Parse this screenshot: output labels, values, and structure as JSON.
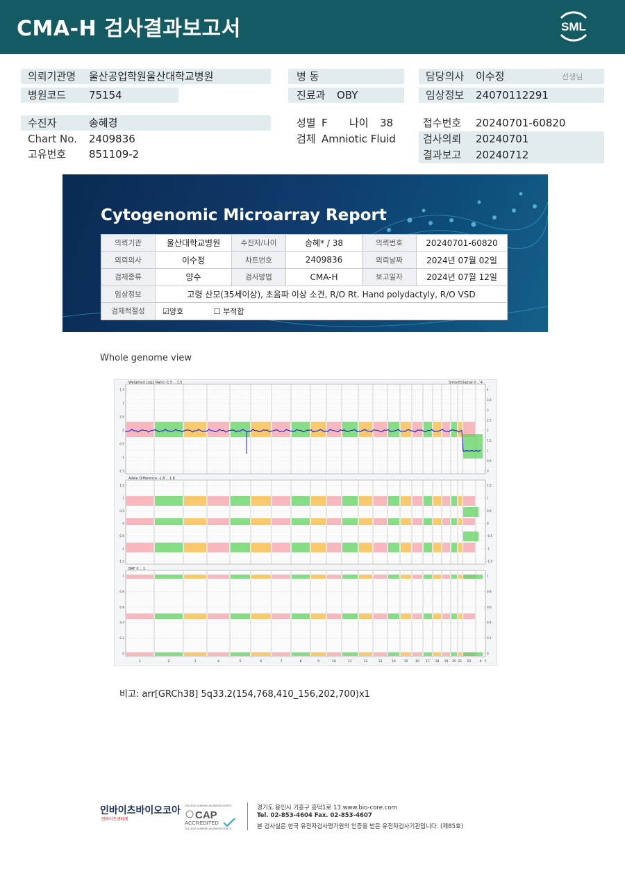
{
  "header": {
    "title": "CMA-H 검사결과보고서",
    "logo_text": "SML"
  },
  "patient": {
    "institution_label": "의뢰기관명",
    "institution": "울산공업학원울산대학교병원",
    "hospital_code_label": "병원코드",
    "hospital_code": "75154",
    "ward_label": "병   동",
    "ward": "",
    "dept_label": "진료과",
    "dept": "OBY",
    "doctor_label": "담당의사",
    "doctor": "이수정",
    "doctor_suffix": "선생님",
    "clinical_label": "임상정보",
    "clinical": "24070112291",
    "patient_label": "수진자",
    "patient_name": "송혜경",
    "chart_label": "Chart No.",
    "chart_no": "2409836",
    "unique_label": "고유번호",
    "unique_no": "851109-2",
    "sex_label": "성별",
    "sex": "F",
    "age_label": "나이",
    "age": "38",
    "specimen_label": "검체",
    "specimen": "Amniotic Fluid",
    "receipt_label": "접수번호",
    "receipt_no": "20240701-60820",
    "request_label": "검사의뢰",
    "request_date": "20240701",
    "result_label": "결과보고",
    "result_date": "20240712"
  },
  "report": {
    "title": "Cytogenomic Microarray Report",
    "table": {
      "r1": [
        "의뢰기관",
        "울산대학교병원",
        "수진자/나이",
        "송혜* / 38",
        "의뢰번호",
        "20240701-60820"
      ],
      "r2": [
        "의뢰의사",
        "이수정",
        "차트번호",
        "2409836",
        "의뢰날짜",
        "2024년 07월 02일"
      ],
      "r3": [
        "검체종류",
        "양수",
        "검사방법",
        "CMA-H",
        "보고일자",
        "2024년 07월 12일"
      ],
      "clinical_label": "임상정보",
      "clinical_info": "고령 산모(35세이상), 초음파 이상 소견, R/O Rt. Hand polydactyly, R/O VSD",
      "adequacy_label": "검체적절성",
      "adequate": "☑양호",
      "inadequate": "☐ 부적합"
    }
  },
  "whole_genome_label": "Whole genome view",
  "genome_plot": {
    "panel1_title": "Weighted Log2 Ratio -1.5 .. 1.5",
    "panel1_right": "SmoothSignal 0 .. 4",
    "panel2_title": "Allele Difference -1.8 .. 1.8",
    "panel3_title": "BAF 0 .. 1",
    "panel1_ticks_left": [
      "1.5",
      "1",
      "0.5",
      "0",
      "-0.5",
      "-1",
      "-1.5"
    ],
    "panel1_ticks_right": [
      "4",
      "3.5",
      "3",
      "2.5",
      "2",
      "1.5",
      "1",
      "0.5",
      "0"
    ],
    "panel2_ticks": [
      "1.5",
      "1",
      "0.5",
      "0",
      "-0.5",
      "-1",
      "-1.5"
    ],
    "panel3_ticks": [
      "1",
      "0.8",
      "0.6",
      "0.4",
      "0.2",
      "0"
    ],
    "chromosomes": [
      "1",
      "2",
      "3",
      "4",
      "5",
      "6",
      "7",
      "8",
      "9",
      "10",
      "11",
      "12",
      "13",
      "14",
      "15",
      "16",
      "17",
      "18",
      "19",
      "20",
      "21",
      "22",
      "X",
      "Y"
    ],
    "colors": {
      "green": "#5fd35f",
      "pink": "#f5a3a8",
      "orange": "#f7b83d",
      "line": "#1a1acc"
    }
  },
  "remark": "비고: arr[GRCh38] 5q33.2(154,768,410_156,202,700)x1",
  "footer": {
    "company": "인바이츠바이오코아",
    "company_sub": "인바이츠생태계",
    "cap_top": "COLLEGE of AMERICAN PATHOLOGISTS",
    "cap": "CAP",
    "cap_accredited": "ACCREDITED",
    "address": "경기도 용인시 기흥구 흥덕1로 13    www.bio-core.com",
    "tel": "Tel. 02-853-4604   Fax. 02-853-4607",
    "cert": "본 검사실은 한국 유전자검사평가원의 인증을 받은 유전자검사기관입니다. (제85호)"
  }
}
